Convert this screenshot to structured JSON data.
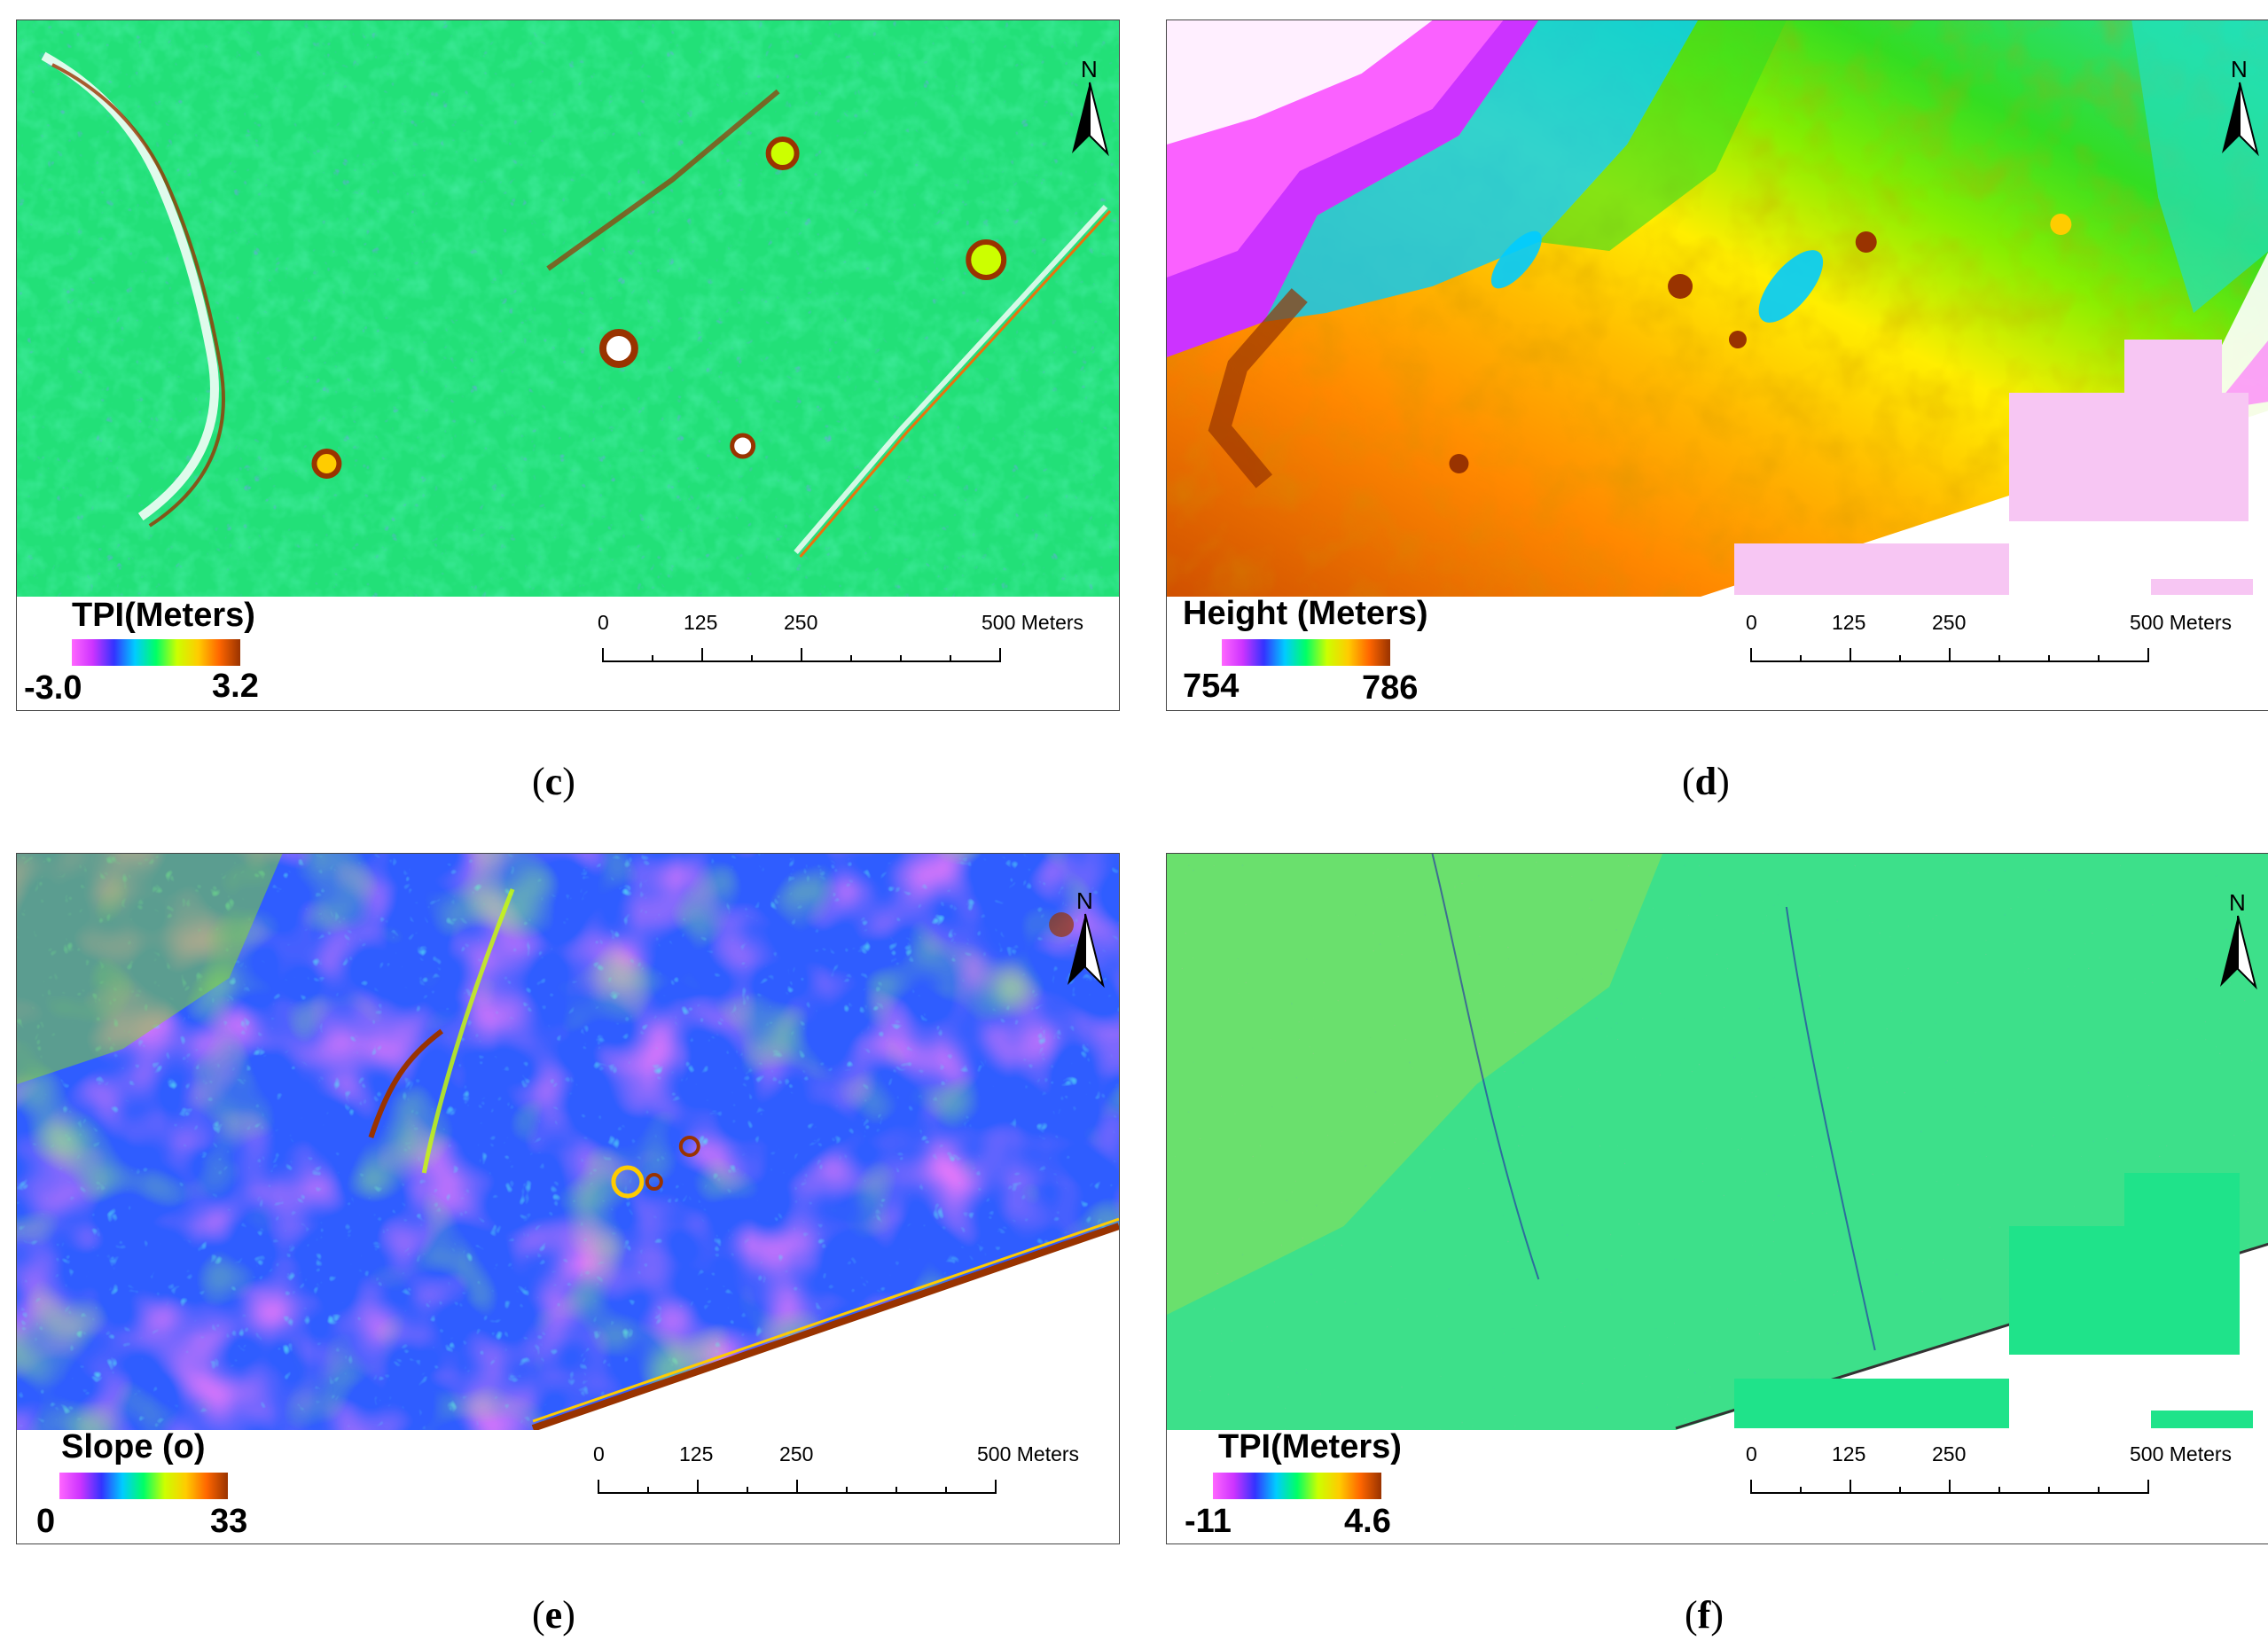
{
  "panels": [
    {
      "id": "c",
      "legend_title": "TPI(Meters)",
      "min": "-3.0",
      "max": "3.2",
      "scale_labels": [
        "0",
        "125",
        "250",
        "500 Meters"
      ],
      "north": "N",
      "caption_letter": "c"
    },
    {
      "id": "d",
      "legend_title": "Height (Meters)",
      "min": "754",
      "max": "786",
      "scale_labels": [
        "0",
        "125",
        "250",
        "500 Meters"
      ],
      "north": "N",
      "caption_letter": "d"
    },
    {
      "id": "e",
      "legend_title": "Slope (o)",
      "min": "0",
      "max": "33",
      "scale_labels": [
        "0",
        "125",
        "250",
        "500 Meters"
      ],
      "north": "N",
      "caption_letter": "e"
    },
    {
      "id": "f",
      "legend_title": "TPI(Meters)",
      "min": "-11",
      "max": "4.6",
      "scale_labels": [
        "0",
        "125",
        "250",
        "500 Meters"
      ],
      "north": "N",
      "caption_letter": "f"
    }
  ],
  "colors": {
    "ramp": [
      "#ff66ff",
      "#cc33ff",
      "#3333ff",
      "#00ccff",
      "#00ff66",
      "#ccff00",
      "#ffcc00",
      "#ff6600",
      "#993300"
    ],
    "tpi_base": "#22e078",
    "height_low": "#ff7700",
    "height_mid": "#ffee00",
    "height_high": "#33dd22",
    "slope_base": "#2f5dff",
    "slope_low": "#ff33ee",
    "nodata_pink": "#f7c6f3",
    "nodata_green": "#1fe38a"
  }
}
